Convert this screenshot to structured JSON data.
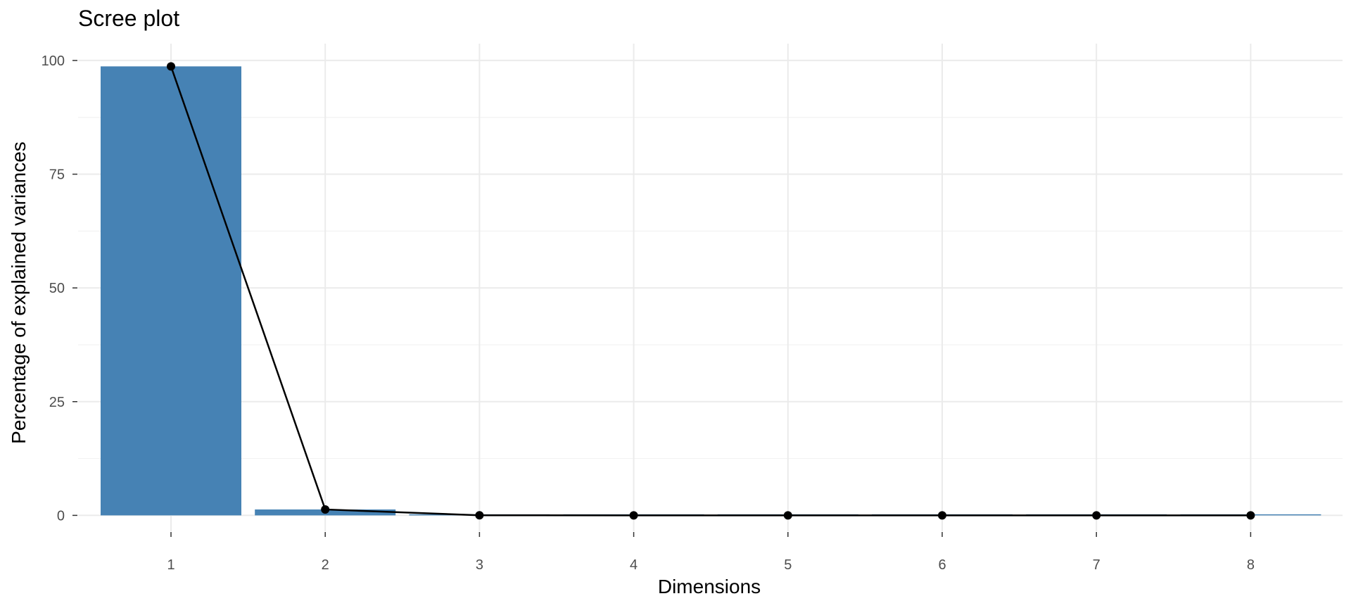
{
  "chart_data": {
    "type": "bar",
    "title": "Scree plot",
    "xlabel": "Dimensions",
    "ylabel": "Percentage of explained variances",
    "categories": [
      "1",
      "2",
      "3",
      "4",
      "5",
      "6",
      "7",
      "8"
    ],
    "values": [
      98.7,
      1.3,
      0.02,
      0.004,
      0.001,
      0.0005,
      0.0002,
      0.0001
    ],
    "line_overlay": true,
    "ylim": [
      -3.5,
      103.7
    ],
    "yticks": [
      "0",
      "25",
      "50",
      "75",
      "100"
    ],
    "grid": true,
    "bar_color": "#4682B4",
    "line_color": "#000000"
  }
}
